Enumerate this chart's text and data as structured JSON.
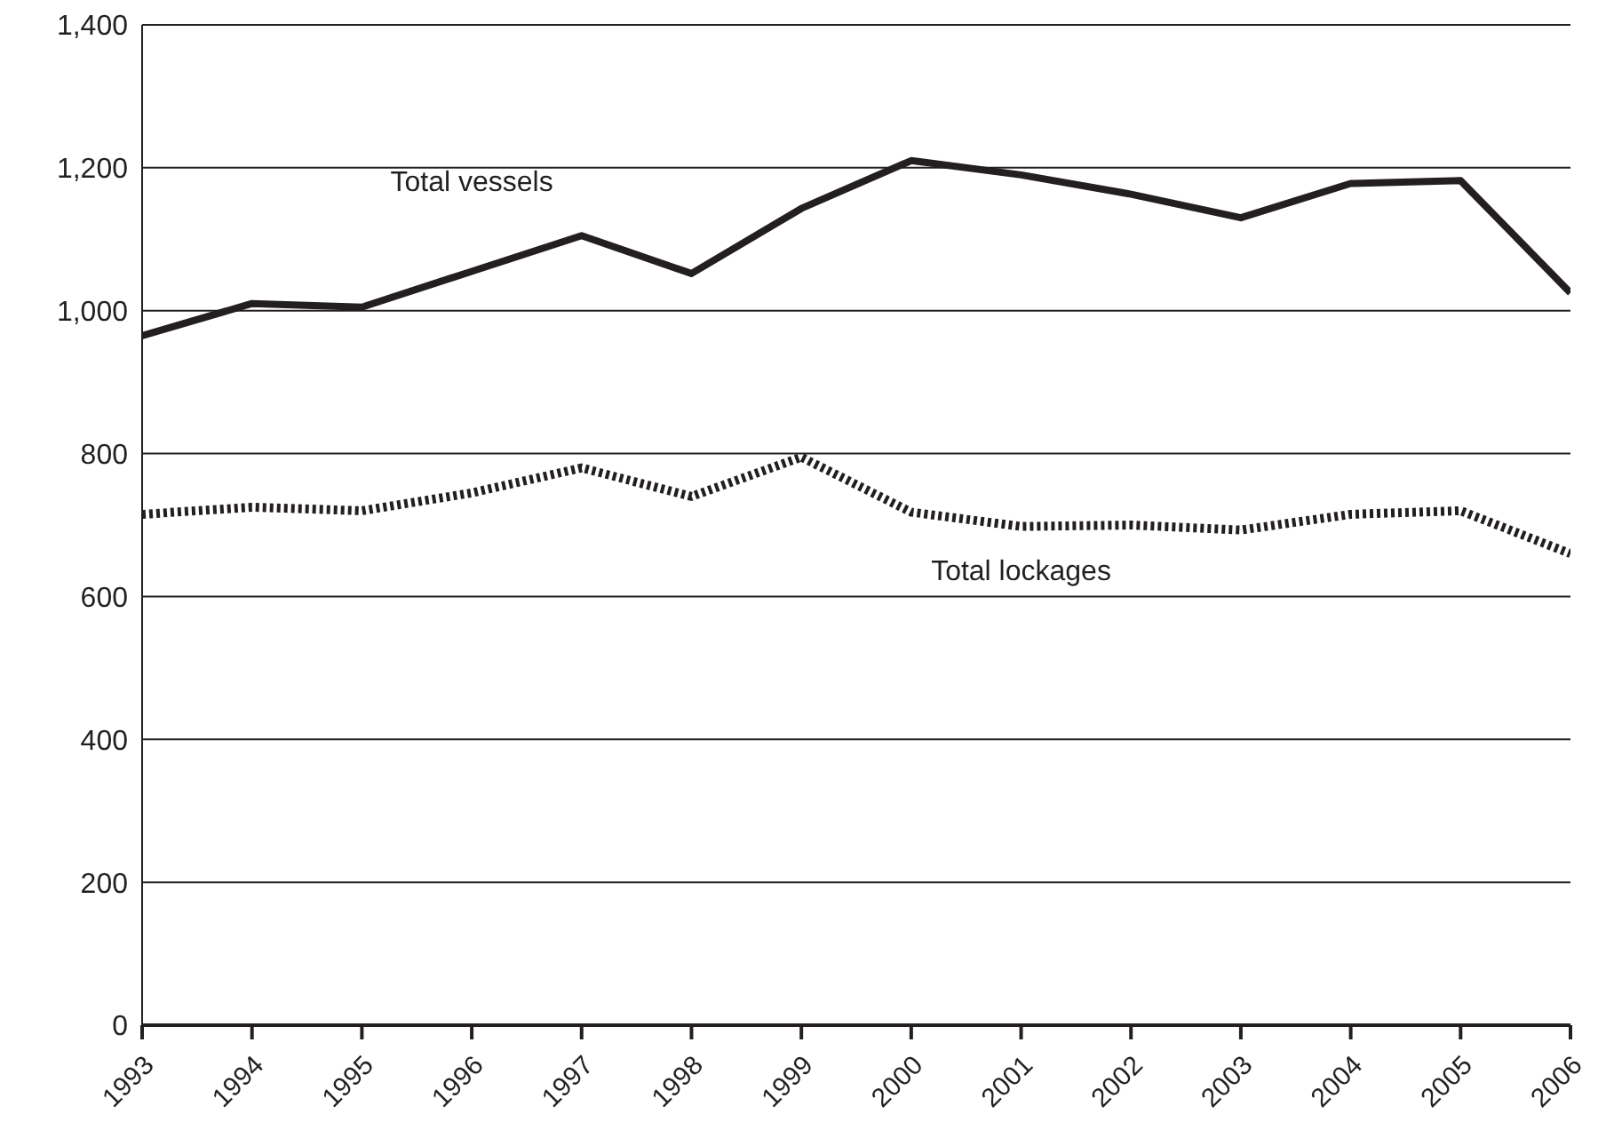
{
  "chart_data": {
    "type": "line",
    "x": [
      1993,
      1994,
      1995,
      1996,
      1997,
      1998,
      1999,
      2000,
      2001,
      2002,
      2003,
      2004,
      2005,
      2006
    ],
    "series": [
      {
        "name": "Total vessels",
        "color": "#231f20",
        "line_style": "solid",
        "values": [
          965,
          1010,
          1005,
          1055,
          1105,
          1052,
          1143,
          1210,
          1190,
          1163,
          1130,
          1178,
          1182,
          1025
        ]
      },
      {
        "name": "Total lockages",
        "color": "#231f20",
        "line_style": "dotted",
        "values": [
          715,
          725,
          720,
          745,
          780,
          740,
          795,
          718,
          698,
          700,
          693,
          715,
          720,
          660
        ]
      }
    ],
    "xlim": [
      1993,
      2006
    ],
    "xticks": [
      1993,
      1994,
      1995,
      1996,
      1997,
      1998,
      1999,
      2000,
      2001,
      2002,
      2003,
      2004,
      2005,
      2006
    ],
    "ylim": [
      0,
      1400
    ],
    "yticks": [
      {
        "value": 0,
        "label": "0"
      },
      {
        "value": 200,
        "label": "200"
      },
      {
        "value": 400,
        "label": "400"
      },
      {
        "value": 600,
        "label": "600"
      },
      {
        "value": 800,
        "label": "800"
      },
      {
        "value": 1000,
        "label": "1,000"
      },
      {
        "value": 1200,
        "label": "1,200"
      },
      {
        "value": 1400,
        "label": "1,400"
      }
    ],
    "grid": "y",
    "marker": "none",
    "legend": false
  }
}
